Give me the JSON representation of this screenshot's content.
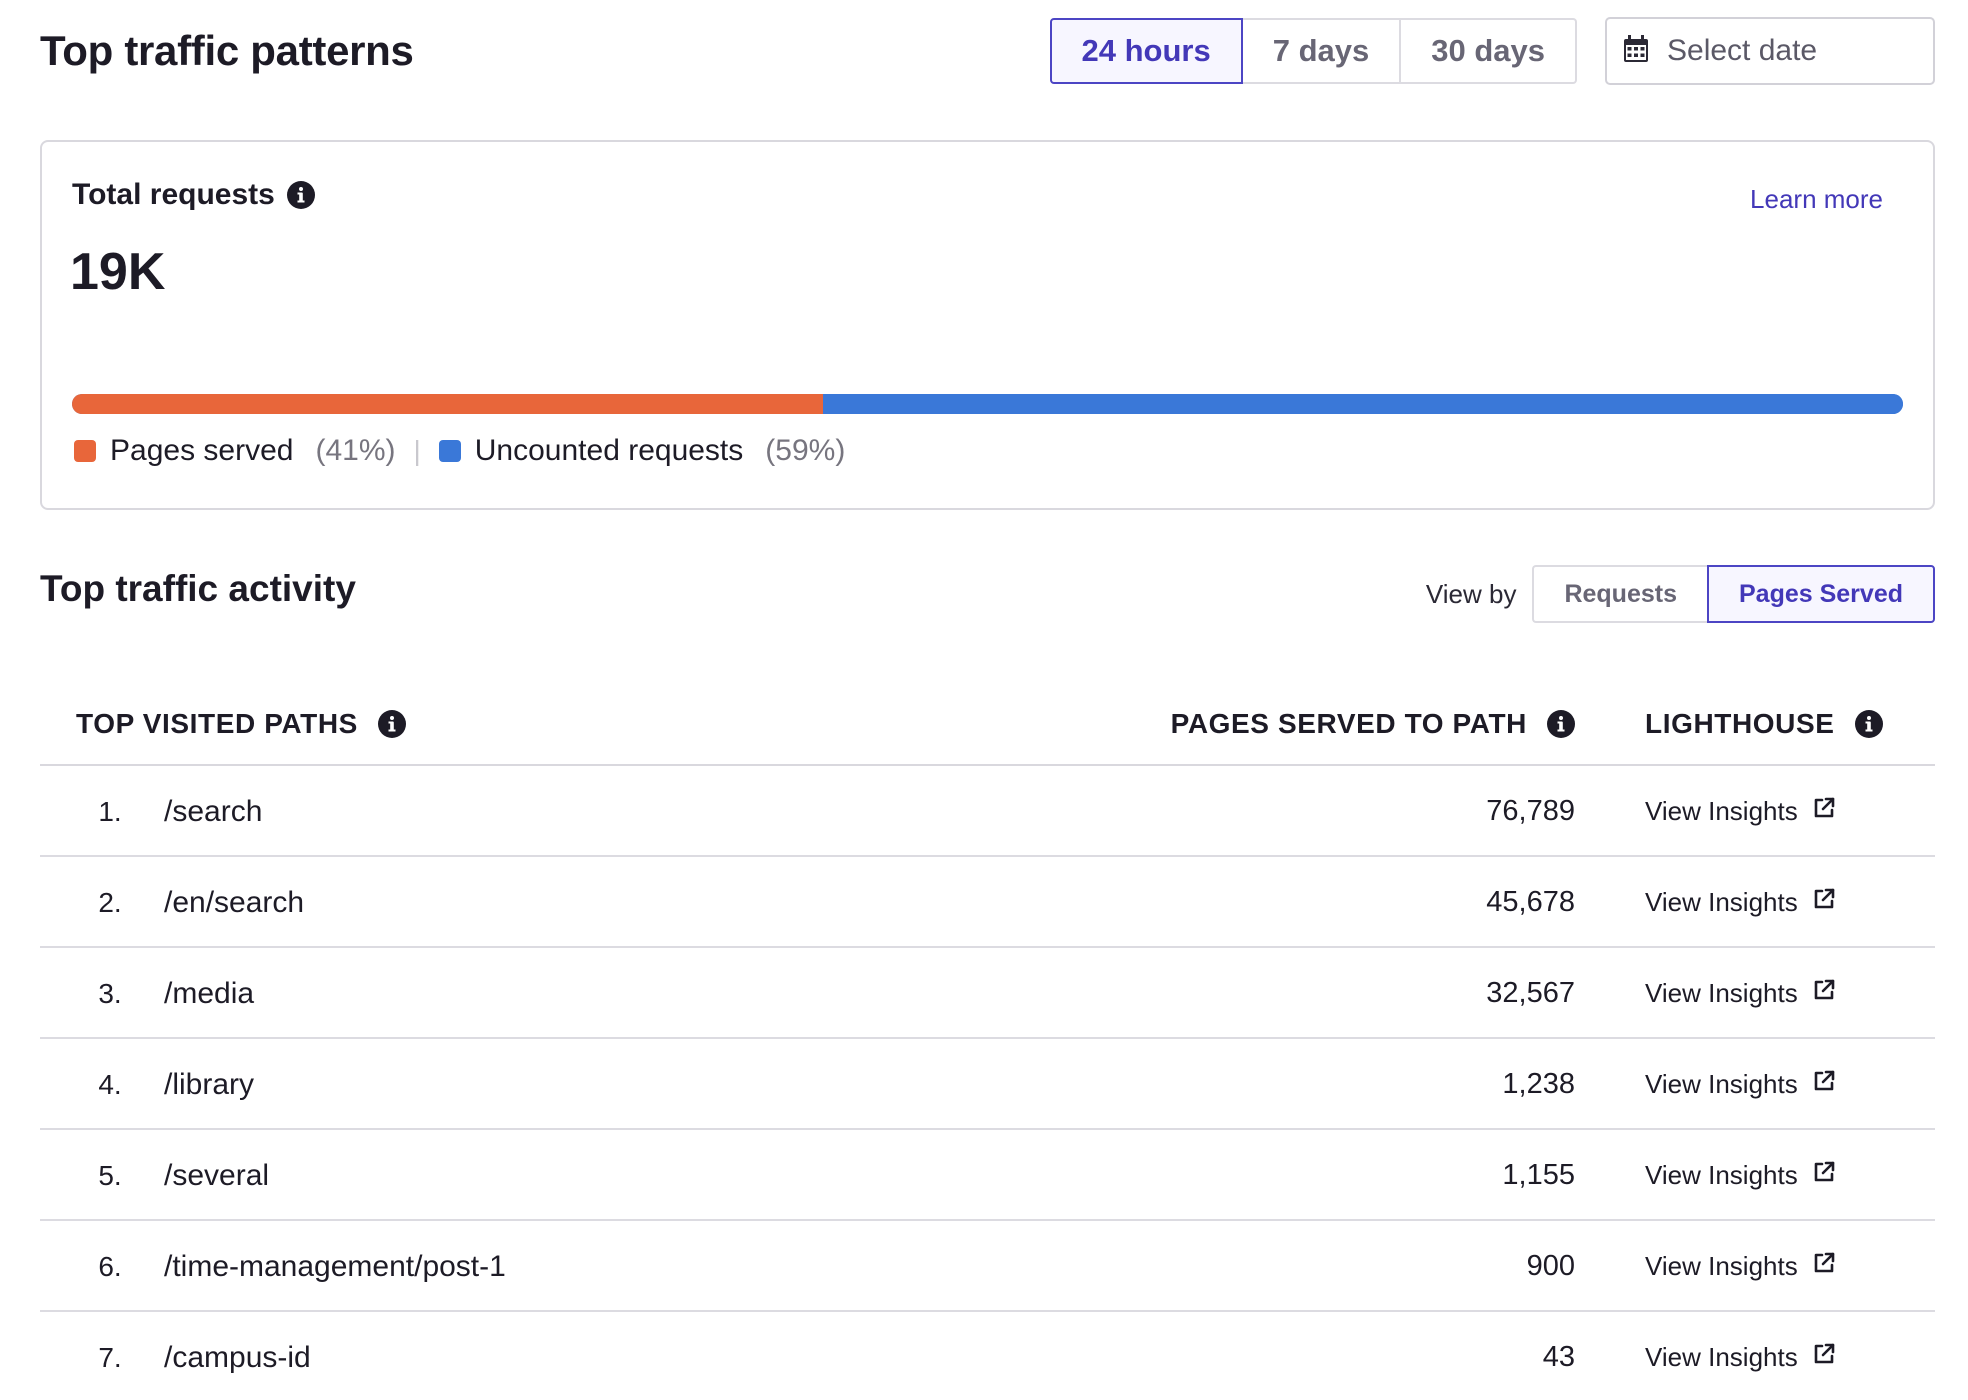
{
  "header": {
    "title": "Top traffic patterns",
    "ranges": [
      {
        "label": "24 hours",
        "active": true
      },
      {
        "label": "7 days",
        "active": false
      },
      {
        "label": "30 days",
        "active": false
      }
    ],
    "date_picker": {
      "placeholder": "Select date",
      "icon": "calendar-icon"
    }
  },
  "summary": {
    "label": "Total requests",
    "learn_more": "Learn more",
    "total": "19K",
    "breakdown": [
      {
        "label": "Pages served",
        "percent_text": "(41%)",
        "fraction": 0.41,
        "color": "#e8663a"
      },
      {
        "label": "Uncounted requests",
        "percent_text": "(59%)",
        "fraction": 0.59,
        "color": "#3a78d8"
      }
    ],
    "separator": "|"
  },
  "activity": {
    "title": "Top traffic activity",
    "view_by_label": "View by",
    "view_options": [
      {
        "label": "Requests",
        "active": false
      },
      {
        "label": "Pages Served",
        "active": true
      }
    ],
    "columns": {
      "path": "TOP VISITED PATHS",
      "pages": "PAGES SERVED TO PATH",
      "lighthouse": "LIGHTHOUSE"
    },
    "rows": [
      {
        "rank": "1.",
        "path": "/search",
        "count": "76,789",
        "link": "View Insights"
      },
      {
        "rank": "2.",
        "path": "/en/search",
        "count": "45,678",
        "link": "View Insights"
      },
      {
        "rank": "3.",
        "path": "/media",
        "count": "32,567",
        "link": "View Insights"
      },
      {
        "rank": "4.",
        "path": "/library",
        "count": "1,238",
        "link": "View Insights"
      },
      {
        "rank": "5.",
        "path": "/several",
        "count": "1,155",
        "link": "View Insights"
      },
      {
        "rank": "6.",
        "path": "/time-management/post-1",
        "count": "900",
        "link": "View Insights"
      },
      {
        "rank": "7.",
        "path": "/campus-id",
        "count": "43",
        "link": "View Insights"
      }
    ]
  },
  "colors": {
    "accent": "#4338b8",
    "orange": "#e8663a",
    "blue": "#3a78d8"
  }
}
